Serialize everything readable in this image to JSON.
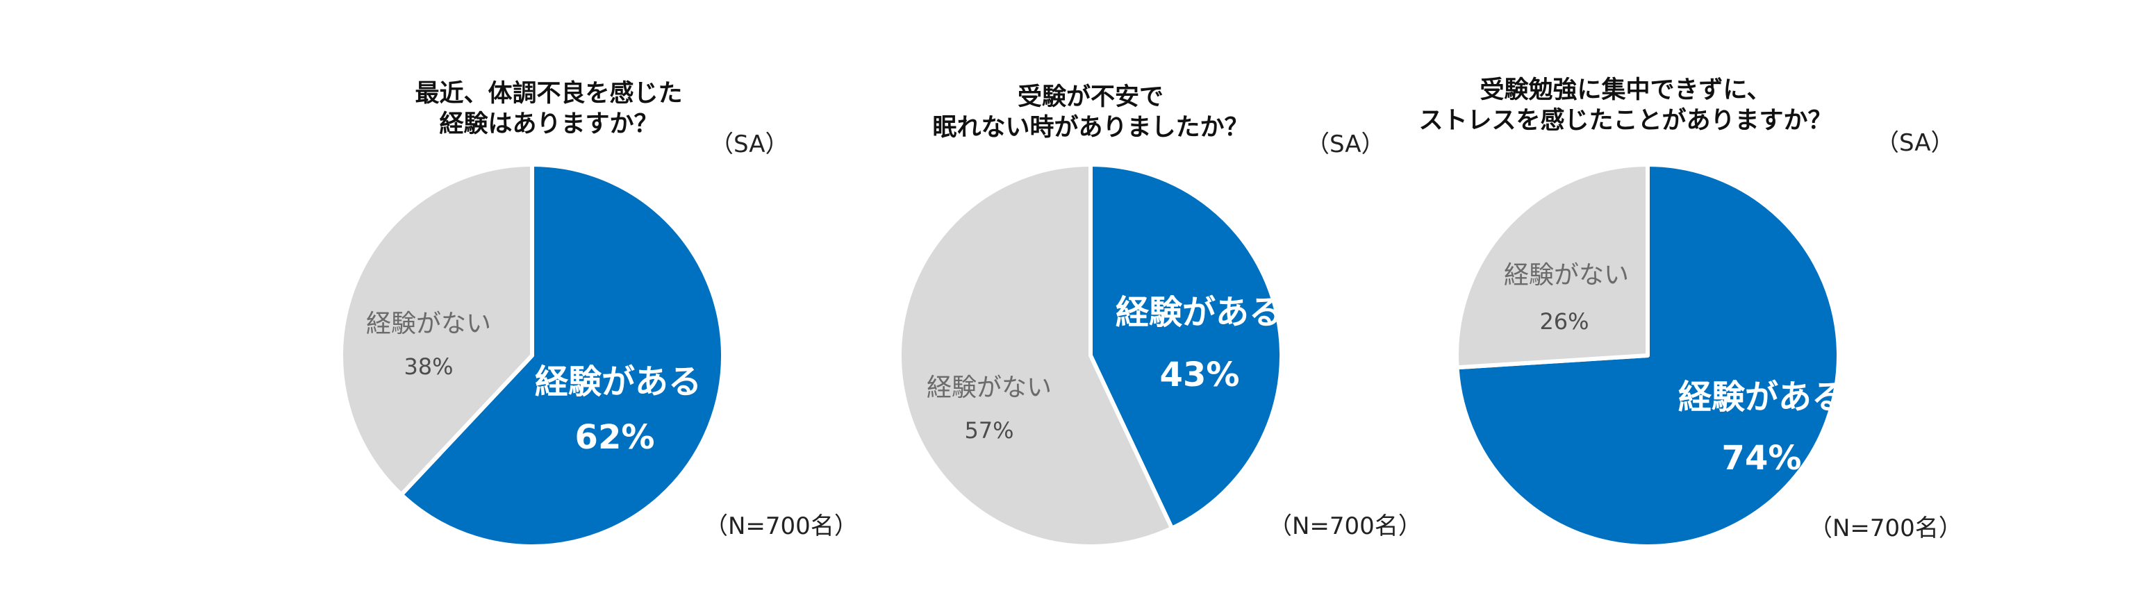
{
  "colors": {
    "yes": "#0070C0",
    "no": "#D9D9D9",
    "separator": "#FFFFFF"
  },
  "chart_data": [
    {
      "type": "pie",
      "title_lines": [
        "最近、体調不良を感じた",
        "経験はありますか？"
      ],
      "sa": "（SA）",
      "n_label": "（N=700名）",
      "slices": [
        {
          "label": "経験がある",
          "value": 62,
          "pct_text": "62%",
          "color": "#0070C0"
        },
        {
          "label": "経験がない",
          "value": 38,
          "pct_text": "38%",
          "color": "#D9D9D9"
        }
      ]
    },
    {
      "type": "pie",
      "title_lines": [
        "受験が不安で",
        "眠れない時がありましたか？"
      ],
      "sa": "（SA）",
      "n_label": "（N=700名）",
      "slices": [
        {
          "label": "経験がある",
          "value": 43,
          "pct_text": "43%",
          "color": "#0070C0"
        },
        {
          "label": "経験がない",
          "value": 57,
          "pct_text": "57%",
          "color": "#D9D9D9"
        }
      ]
    },
    {
      "type": "pie",
      "title_lines": [
        "受験勉強に集中できずに、",
        "ストレスを感じたことがありますか？"
      ],
      "sa": "（SA）",
      "n_label": "（N=700名）",
      "slices": [
        {
          "label": "経験がある",
          "value": 74,
          "pct_text": "74%",
          "color": "#0070C0"
        },
        {
          "label": "経験がない",
          "value": 26,
          "pct_text": "26%",
          "color": "#D9D9D9"
        }
      ]
    }
  ]
}
